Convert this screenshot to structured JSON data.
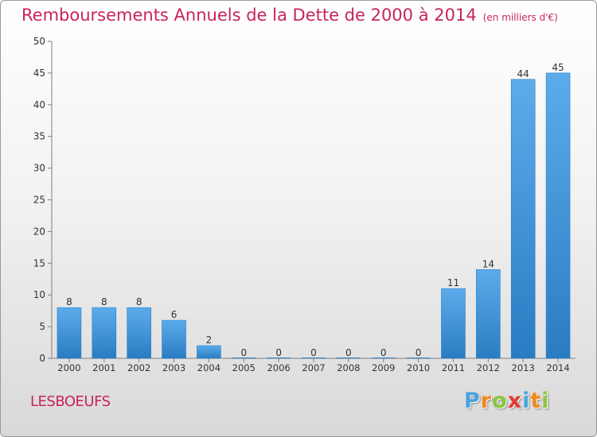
{
  "header": {
    "title": "Remboursements Annuels de la Dette de 2000 à 2014",
    "unit_note": "(en milliers d'€)"
  },
  "city": "LESBOEUFS",
  "logo": {
    "letters": [
      "P",
      "r",
      "o",
      "x",
      "i",
      "t",
      "i"
    ],
    "colors": [
      "#4aa3df",
      "#f28a1e",
      "#8cc63f",
      "#e53935",
      "#4aa3df",
      "#f28a1e",
      "#8cc63f"
    ]
  },
  "chart_data": {
    "type": "bar",
    "title": "Remboursements Annuels de la Dette de 2000 à 2014",
    "categories": [
      "2000",
      "2001",
      "2002",
      "2003",
      "2004",
      "2005",
      "2006",
      "2007",
      "2008",
      "2009",
      "2010",
      "2011",
      "2012",
      "2013",
      "2014"
    ],
    "values": [
      8,
      8,
      8,
      6,
      2,
      0,
      0,
      0,
      0,
      0,
      0,
      11,
      14,
      44,
      45
    ],
    "ylim": [
      0,
      50
    ],
    "yticks": [
      0,
      5,
      10,
      15,
      20,
      25,
      30,
      35,
      40,
      45,
      50
    ],
    "grid": false,
    "bar_color": "#3a8fd6"
  }
}
